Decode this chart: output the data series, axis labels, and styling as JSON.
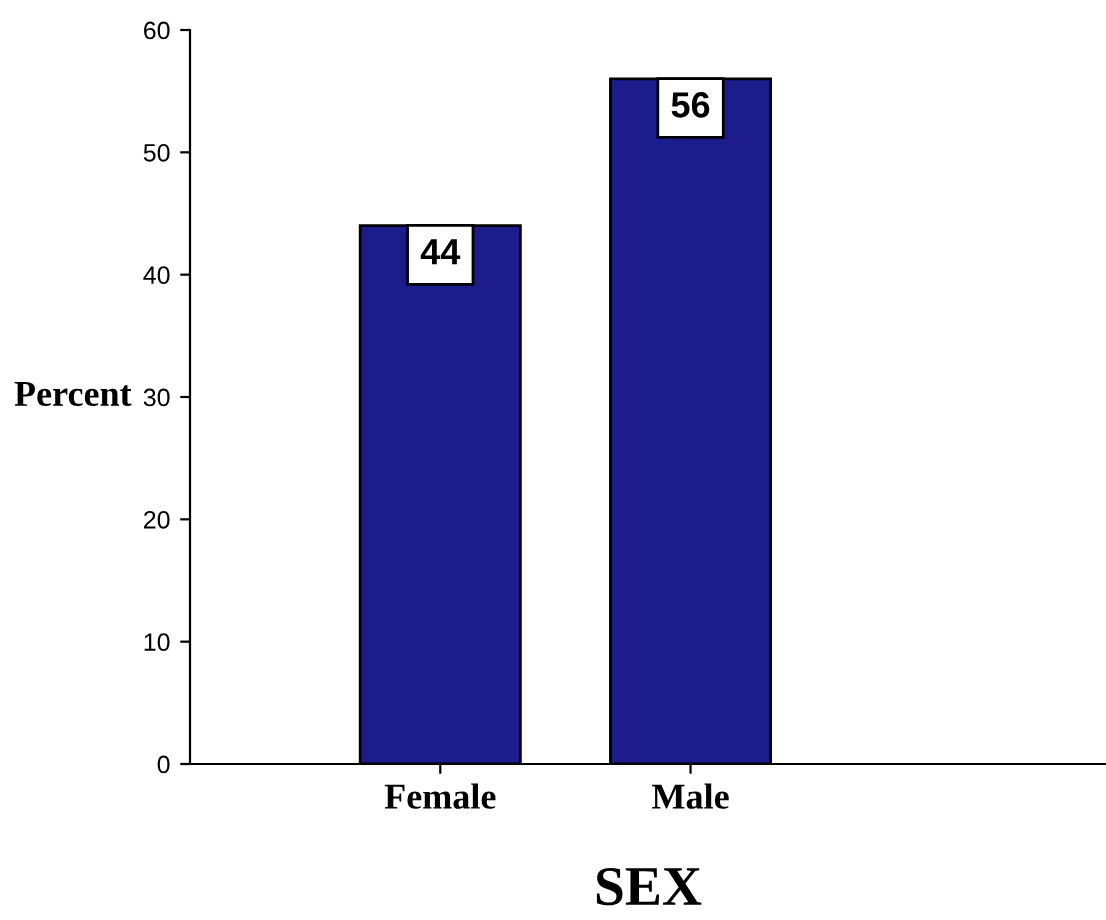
{
  "chart_data": {
    "type": "bar",
    "xlabel": "SEX",
    "ylabel": "Percent",
    "categories": [
      "Female",
      "Male"
    ],
    "values": [
      44,
      56
    ],
    "color": "#1c1c8c",
    "ylim": [
      0,
      60
    ],
    "yticks": [
      0,
      10,
      20,
      30,
      40,
      50,
      60
    ],
    "data_labels": true,
    "grid": false,
    "legend": false
  }
}
